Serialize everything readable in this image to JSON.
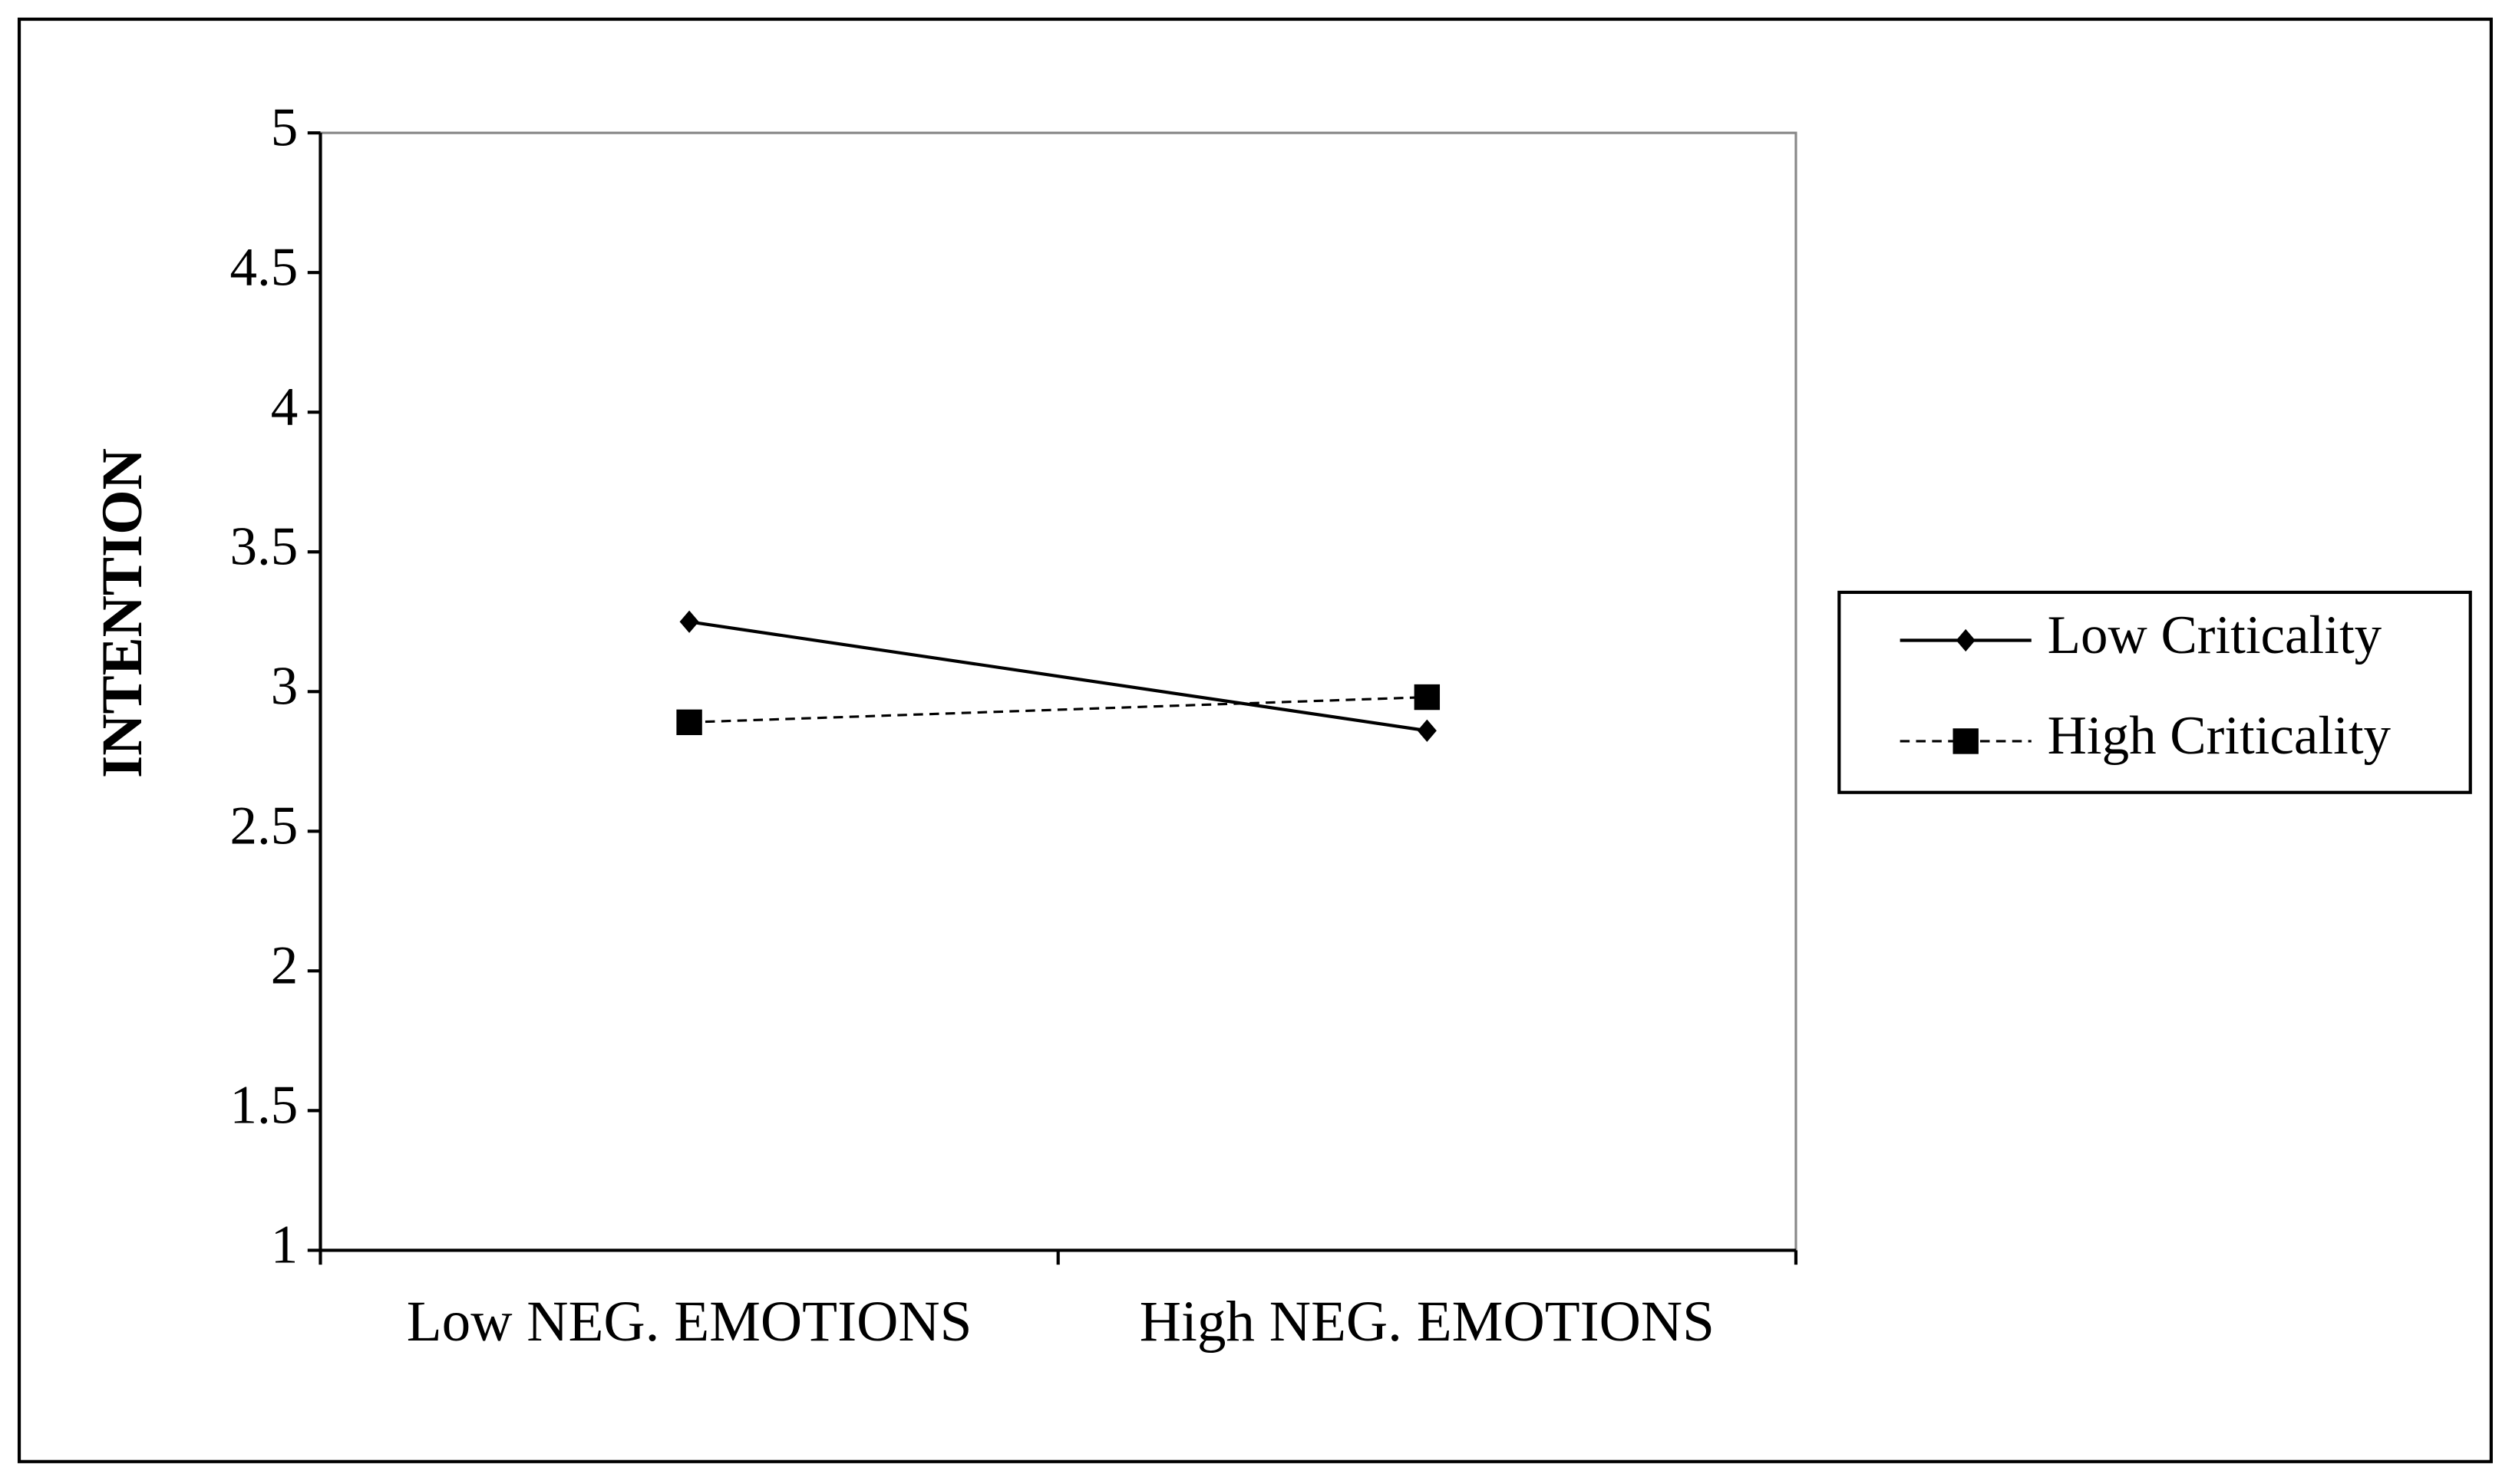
{
  "chart_data": {
    "type": "line",
    "y_label": "INTENTION",
    "categories": [
      "Low NEG. EMOTIONS",
      "High NEG. EMOTIONS"
    ],
    "series": [
      {
        "name": "Low Criticality",
        "color": "#000000",
        "dash": "solid",
        "marker": "diamond",
        "values": [
          3.25,
          2.86
        ]
      },
      {
        "name": "High Criticality",
        "color": "#000000",
        "dash": "dashed",
        "marker": "square",
        "values": [
          2.89,
          2.98
        ]
      }
    ],
    "ylim": [
      1,
      5
    ],
    "yticks": [
      1,
      1.5,
      2,
      2.5,
      3,
      3.5,
      4,
      4.5,
      5
    ],
    "grid": false,
    "legend": "right"
  }
}
